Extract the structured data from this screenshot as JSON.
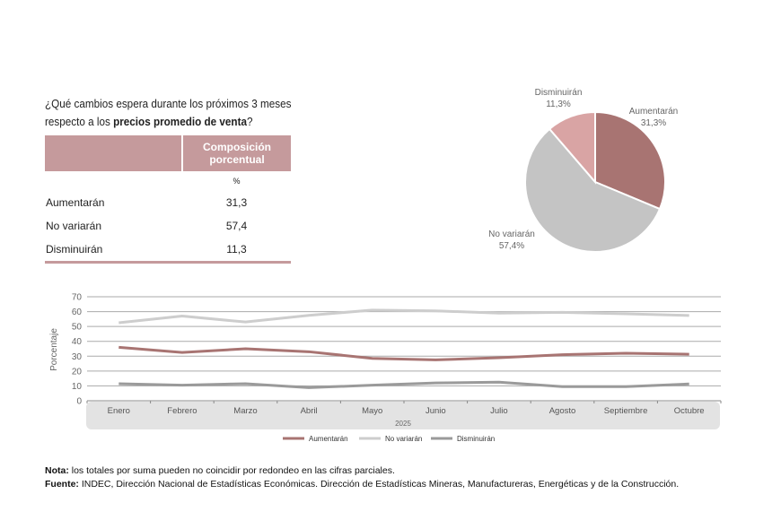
{
  "question": {
    "prefix": "¿Qué cambios espera durante los próximos 3 meses",
    "line2_prefix": "respecto a los ",
    "bold": "precios promedio de venta",
    "suffix": "?"
  },
  "table": {
    "header": "Composición porcentual",
    "unit": "%",
    "rows": [
      {
        "label": "Aumentarán",
        "value": "31,3"
      },
      {
        "label": "No variarán",
        "value": "57,4"
      },
      {
        "label": "Disminuirán",
        "value": "11,3"
      }
    ]
  },
  "colors": {
    "aumentaran": "#a87472",
    "no_variaran": "#c4c4c4",
    "disminuiran": "#9a9a9a",
    "pie_disminuiran": "#d9a4a4",
    "table_header": "#c59a9c"
  },
  "chart_data": [
    {
      "type": "pie",
      "slices": [
        {
          "label": "Aumentarán",
          "value": 31.3,
          "text": "31,3%"
        },
        {
          "label": "No variarán",
          "value": 57.4,
          "text": "57,4%"
        },
        {
          "label": "Disminuirán",
          "value": 11.3,
          "text": "11,3%"
        }
      ]
    },
    {
      "type": "line",
      "ylabel": "Porcentaje",
      "xlabel": "2025",
      "ylim": [
        0,
        70
      ],
      "yticks": [
        0,
        10,
        20,
        30,
        40,
        50,
        60,
        70
      ],
      "grid": true,
      "legend": "bottom",
      "categories": [
        "Enero",
        "Febrero",
        "Marzo",
        "Abril",
        "Mayo",
        "Junio",
        "Julio",
        "Agosto",
        "Septiembre",
        "Octubre"
      ],
      "series": [
        {
          "name": "Aumentarán",
          "values": [
            36,
            32.5,
            35,
            33,
            28.5,
            27.5,
            29,
            31,
            32,
            31.3
          ]
        },
        {
          "name": "No variarán",
          "values": [
            52.5,
            57,
            53,
            57.5,
            61,
            60.5,
            59,
            59.5,
            58.5,
            57.4
          ]
        },
        {
          "name": "Disminuirán",
          "values": [
            11.5,
            10.5,
            11.5,
            8.8,
            10.5,
            12,
            12.5,
            9.5,
            9.5,
            11.3
          ]
        }
      ]
    }
  ],
  "notes": {
    "nota_label": "Nota:",
    "nota": " los totales por suma pueden no coincidir por redondeo en las cifras parciales.",
    "fuente_label": "Fuente:",
    "fuente": " INDEC, Dirección Nacional de Estadísticas Económicas. Dirección de Estadísticas Mineras, Manufactureras, Energéticas y de la Construcción."
  }
}
